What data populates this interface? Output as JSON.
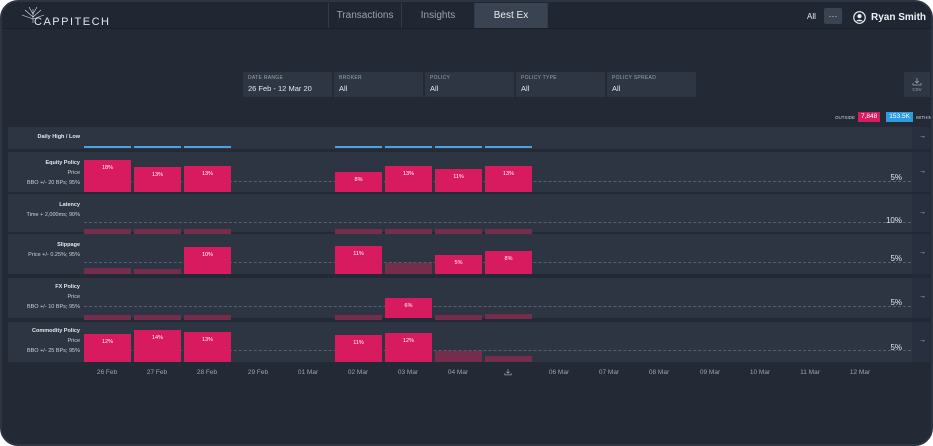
{
  "app": {
    "brand": "CAPPITECH"
  },
  "nav": {
    "tabs": [
      {
        "label": "Transactions"
      },
      {
        "label": "Insights"
      },
      {
        "label": "Best Ex"
      }
    ],
    "active_tab": "Best Ex",
    "filter_all": "All",
    "more": "···",
    "user_name": "Ryan Smith"
  },
  "filters": [
    {
      "label": "DATE RANGE",
      "value": "26 Feb - 12 Mar 20"
    },
    {
      "label": "BROKER",
      "value": "All"
    },
    {
      "label": "POLICY",
      "value": "All"
    },
    {
      "label": "POLICY TYPE",
      "value": "All"
    },
    {
      "label": "POLICY SPREAD",
      "value": "All"
    }
  ],
  "csv_label": "CSV",
  "legend": {
    "outside_label": "OUTSIDE",
    "outside_value": "7,848",
    "within_value": "153.5K",
    "within_label": "WITHIN"
  },
  "colors": {
    "outside": "#d81b5e",
    "within": "#2c9be0",
    "background": "#232a35",
    "row": "#2d3542"
  },
  "rows": [
    {
      "title": "Daily High / Low"
    },
    {
      "title": "Equity Policy",
      "sub1": "Price",
      "sub2": "BBO +/- 20 BPs; 95%",
      "threshold": "5%",
      "bars": [
        {
          "value": "18%"
        },
        {
          "value": "13%"
        },
        {
          "value": "13%"
        },
        {
          "value": "8%"
        },
        {
          "value": "13%"
        },
        {
          "value": "11%"
        },
        {
          "value": "13%"
        }
      ]
    },
    {
      "title": "Latency",
      "sub1": "Time + 2,000ms; 90%",
      "threshold": "10%"
    },
    {
      "title": "Slippage",
      "sub1": "Price +/- 0.25%; 95%",
      "threshold": "5%",
      "bars": [
        {
          "value": "10%"
        },
        {
          "value": "11%"
        },
        {
          "value": "5%"
        },
        {
          "value": "8%"
        }
      ]
    },
    {
      "title": "FX Policy",
      "sub1": "Price",
      "sub2": "BBO +/- 10 BPs; 95%",
      "threshold": "5%",
      "bars": [
        {
          "value": "6%"
        }
      ]
    },
    {
      "title": "Commodity Policy",
      "sub1": "Price",
      "sub2": "BBO +/- 25 BPs; 95%",
      "threshold": "5%",
      "bars": [
        {
          "value": "12%"
        },
        {
          "value": "14%"
        },
        {
          "value": "13%"
        },
        {
          "value": "11%"
        },
        {
          "value": "12%"
        }
      ]
    }
  ],
  "x_axis": [
    "26 Feb",
    "27 Feb",
    "28 Feb",
    "29 Feb",
    "01 Mar",
    "02 Mar",
    "03 Mar",
    "04 Mar",
    "",
    "06 Mar",
    "07 Mar",
    "08 Mar",
    "09 Mar",
    "10 Mar",
    "11 Mar",
    "12 Mar"
  ],
  "x_axis_icon": "download-icon"
}
